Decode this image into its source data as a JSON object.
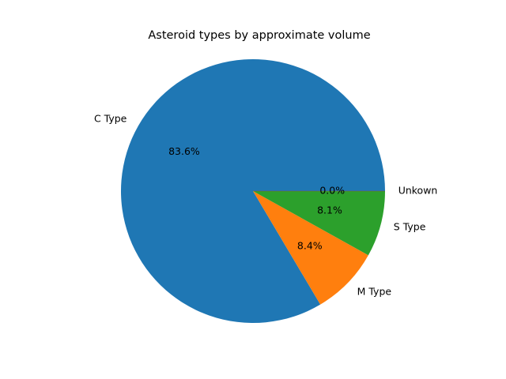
{
  "chart_data": {
    "type": "pie",
    "title": "Asteroid types by approximate volume",
    "slices": [
      {
        "label": "C Type",
        "value": 83.6,
        "pct_label": "83.6%",
        "color": "#1f77b4"
      },
      {
        "label": "M Type",
        "value": 8.4,
        "pct_label": "8.4%",
        "color": "#ff7f0e"
      },
      {
        "label": "S Type",
        "value": 8.1,
        "pct_label": "8.1%",
        "color": "#2ca02c"
      },
      {
        "label": "Unkown",
        "value": 0.0,
        "pct_label": "0.0%",
        "color": "#d62728"
      }
    ],
    "start_angle_deg": 0,
    "direction": "counterclockwise",
    "legend": "none",
    "grid": false
  }
}
